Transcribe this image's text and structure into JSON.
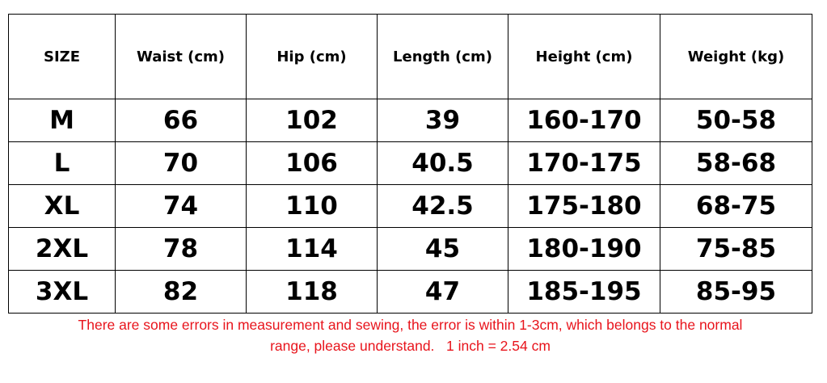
{
  "table": {
    "headers": [
      "SIZE",
      "Waist (cm)",
      "Hip  (cm)",
      "Length  (cm)",
      "Height  (cm)",
      "Weight  (kg)"
    ],
    "rows": [
      [
        "M",
        "66",
        "102",
        "39",
        "160-170",
        "50-58"
      ],
      [
        "L",
        "70",
        "106",
        "40.5",
        "170-175",
        "58-68"
      ],
      [
        "XL",
        "74",
        "110",
        "42.5",
        "175-180",
        "68-75"
      ],
      [
        "2XL",
        "78",
        "114",
        "45",
        "180-190",
        "75-85"
      ],
      [
        "3XL",
        "82",
        "118",
        "47",
        "185-195",
        "85-95"
      ]
    ]
  },
  "note": {
    "line1": "There are some errors in measurement and sewing, the error is within 1-3cm, which belongs to the normal",
    "line2": "range, please understand.   1 inch = 2.54 cm"
  },
  "colors": {
    "note": "#e8141c"
  }
}
